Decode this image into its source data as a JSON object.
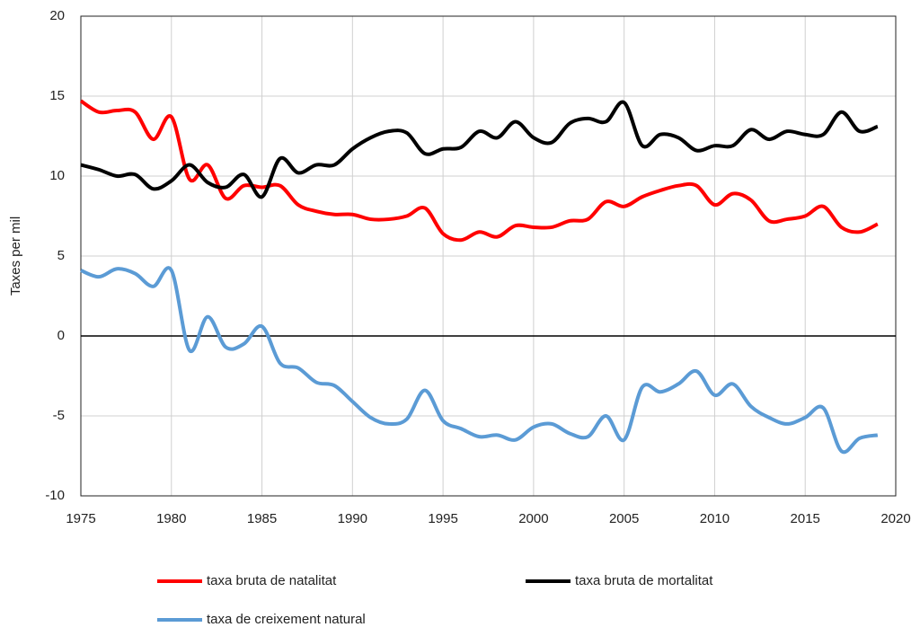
{
  "chart_data": {
    "type": "line",
    "ylabel": "Taxes per mil",
    "x": [
      1975,
      1976,
      1977,
      1978,
      1979,
      1980,
      1981,
      1982,
      1983,
      1984,
      1985,
      1986,
      1987,
      1988,
      1989,
      1990,
      1991,
      1992,
      1993,
      1994,
      1995,
      1996,
      1997,
      1998,
      1999,
      2000,
      2001,
      2002,
      2003,
      2004,
      2005,
      2006,
      2007,
      2008,
      2009,
      2010,
      2011,
      2012,
      2013,
      2014,
      2015,
      2016,
      2017,
      2018,
      2019
    ],
    "series": [
      {
        "name": "taxa bruta de natalitat",
        "color": "#ff0000",
        "values": [
          14.7,
          14.0,
          14.1,
          14.0,
          12.3,
          13.7,
          9.8,
          10.7,
          8.6,
          9.4,
          9.3,
          9.4,
          8.2,
          7.8,
          7.6,
          7.6,
          7.3,
          7.3,
          7.5,
          8.0,
          6.4,
          6.0,
          6.5,
          6.2,
          6.9,
          6.8,
          6.8,
          7.2,
          7.3,
          8.4,
          8.1,
          8.7,
          9.1,
          9.4,
          9.4,
          8.2,
          8.9,
          8.5,
          7.2,
          7.3,
          7.5,
          8.1,
          6.8,
          6.5,
          7.0
        ]
      },
      {
        "name": "taxa bruta de mortalitat",
        "color": "#000000",
        "values": [
          10.7,
          10.4,
          10.0,
          10.1,
          9.2,
          9.7,
          10.7,
          9.6,
          9.3,
          10.1,
          8.7,
          11.1,
          10.2,
          10.7,
          10.7,
          11.7,
          12.4,
          12.8,
          12.7,
          11.4,
          11.7,
          11.8,
          12.8,
          12.4,
          13.4,
          12.4,
          12.1,
          13.3,
          13.6,
          13.4,
          14.6,
          11.9,
          12.6,
          12.4,
          11.6,
          11.9,
          11.9,
          12.9,
          12.3,
          12.8,
          12.6,
          12.6,
          14.0,
          12.8,
          13.1
        ]
      },
      {
        "name": "taxa de creixement natural",
        "color": "#5b9bd5",
        "values": [
          4.1,
          3.7,
          4.2,
          3.9,
          3.1,
          4.1,
          -0.9,
          1.2,
          -0.7,
          -0.5,
          0.6,
          -1.7,
          -2.0,
          -2.9,
          -3.1,
          -4.1,
          -5.1,
          -5.5,
          -5.2,
          -3.4,
          -5.3,
          -5.8,
          -6.3,
          -6.2,
          -6.5,
          -5.7,
          -5.5,
          -6.1,
          -6.3,
          -5.0,
          -6.5,
          -3.2,
          -3.5,
          -3.0,
          -2.2,
          -3.7,
          -3.0,
          -4.4,
          -5.1,
          -5.5,
          -5.1,
          -4.5,
          -7.2,
          -6.4,
          -6.2
        ]
      }
    ],
    "xlim": [
      1975,
      2020
    ],
    "xticks": [
      1975,
      1980,
      1985,
      1990,
      1995,
      2000,
      2005,
      2010,
      2015,
      2020
    ],
    "ylim": [
      -10,
      20
    ],
    "yticks": [
      -10,
      -5,
      0,
      5,
      10,
      15,
      20
    ],
    "grid": true,
    "legend": "bottom"
  }
}
